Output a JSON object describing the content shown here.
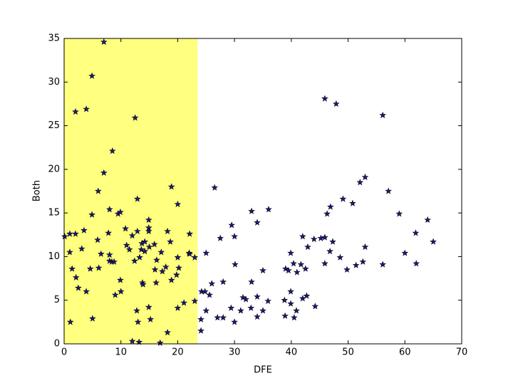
{
  "chart_data": {
    "type": "scatter",
    "xlabel": "DFE",
    "ylabel": "Both",
    "xlim": [
      0,
      70
    ],
    "xticks": [
      0,
      10,
      20,
      30,
      40,
      50,
      60,
      70
    ],
    "ylim": [
      0,
      35
    ],
    "yticks": [
      0,
      5,
      10,
      15,
      20,
      25,
      30,
      35
    ],
    "color": "#1a1a8c",
    "span": {
      "xmin": 0,
      "xmax": 23.5,
      "color": "#ffff80"
    },
    "x": [
      0.1,
      1,
      1,
      1.1,
      1.4,
      2,
      2,
      2.1,
      2.5,
      3.1,
      3.5,
      3.9,
      3.9,
      4.6,
      4.9,
      4.9,
      5,
      5.9,
      6,
      6.1,
      6.5,
      7,
      7,
      7.8,
      8,
      8,
      8,
      8.4,
      8.5,
      8.8,
      9,
      9.5,
      9.9,
      9.9,
      10,
      10.8,
      11,
      11.5,
      12,
      12,
      12.4,
      12.5,
      12.8,
      12.9,
      12.9,
      13,
      13.2,
      13.3,
      13.6,
      13.7,
      13.8,
      13.9,
      14.2,
      14.2,
      14.9,
      14.9,
      14.9,
      14.9,
      15,
      15.2,
      15.9,
      16,
      16.2,
      16.3,
      16.9,
      17.1,
      17.3,
      17.9,
      18.2,
      18.2,
      18.7,
      18.9,
      18.9,
      19.8,
      20,
      20,
      20,
      20.2,
      21.1,
      22,
      22.1,
      22.1,
      23,
      23,
      24.1,
      24.1,
      24.2,
      24.8,
      25,
      25,
      25.6,
      26,
      26.5,
      27,
      27.5,
      28,
      28,
      29.4,
      29.5,
      30,
      30,
      30.1,
      31.1,
      31.5,
      32,
      32.9,
      33,
      33,
      34,
      34,
      34,
      35,
      35,
      35.9,
      36,
      38.8,
      38.9,
      39,
      39.5,
      39.9,
      39.9,
      39.9,
      40.4,
      40.5,
      40.9,
      41,
      41.7,
      42,
      42,
      42.5,
      42.7,
      42.9,
      44,
      44.2,
      45.2,
      45.9,
      45.9,
      45.9,
      46.3,
      46.8,
      46.9,
      47.3,
      47.9,
      48.6,
      49.1,
      49.8,
      50.8,
      51.4,
      52.1,
      52.6,
      53,
      53,
      56.1,
      56.1,
      57.1,
      59,
      60,
      61.9,
      62,
      64,
      65
    ],
    "values": [
      12.3,
      12.6,
      10.5,
      2.5,
      8.6,
      12.6,
      26.6,
      7.6,
      6.4,
      10.9,
      13,
      26.9,
      6,
      8.6,
      30.7,
      14.8,
      2.9,
      11.9,
      17.5,
      8.7,
      10.3,
      34.6,
      19.6,
      12.7,
      15.4,
      10.2,
      9.5,
      9.4,
      22.1,
      9.4,
      5.6,
      14.9,
      15.1,
      7.3,
      6,
      13.2,
      11.3,
      10.8,
      0.3,
      12.4,
      9.5,
      25.9,
      3.8,
      16.6,
      12.9,
      2.5,
      0.2,
      9.9,
      10.8,
      11.5,
      7,
      6.8,
      11.7,
      10.6,
      14.2,
      13.3,
      4.2,
      12.9,
      11.1,
      2.8,
      11.4,
      8.5,
      7,
      9.6,
      0.1,
      10.5,
      8.3,
      8.8,
      1.3,
      12.9,
      11.7,
      18,
      7.3,
      7.9,
      9.9,
      16,
      4.1,
      8.7,
      4.7,
      10.4,
      12.6,
      10.3,
      9.9,
      4.9,
      1.5,
      2.8,
      6,
      6,
      3.8,
      10.4,
      5.6,
      6.9,
      17.9,
      3,
      12.1,
      7.1,
      3,
      4.1,
      13.6,
      2.5,
      12.3,
      9.1,
      3.8,
      5.3,
      5.1,
      4.1,
      15.2,
      7.1,
      13.9,
      3.1,
      5.4,
      3.8,
      8.4,
      4.9,
      15.4,
      5,
      3.2,
      8.6,
      8.4,
      10.4,
      6,
      4.6,
      9.2,
      3,
      3.8,
      8.2,
      9.1,
      12.3,
      5.2,
      8.6,
      5.5,
      11.1,
      12,
      4.3,
      12.1,
      28.1,
      12.2,
      9.2,
      14.9,
      10.6,
      15.7,
      11.7,
      27.5,
      9.9,
      16.6,
      8.5,
      16.1,
      9,
      18.5,
      9.4,
      19.1,
      11.1,
      26.2,
      9.1,
      17.5,
      14.9,
      10.4,
      12.7,
      9.2,
      14.2,
      11.7
    ]
  }
}
